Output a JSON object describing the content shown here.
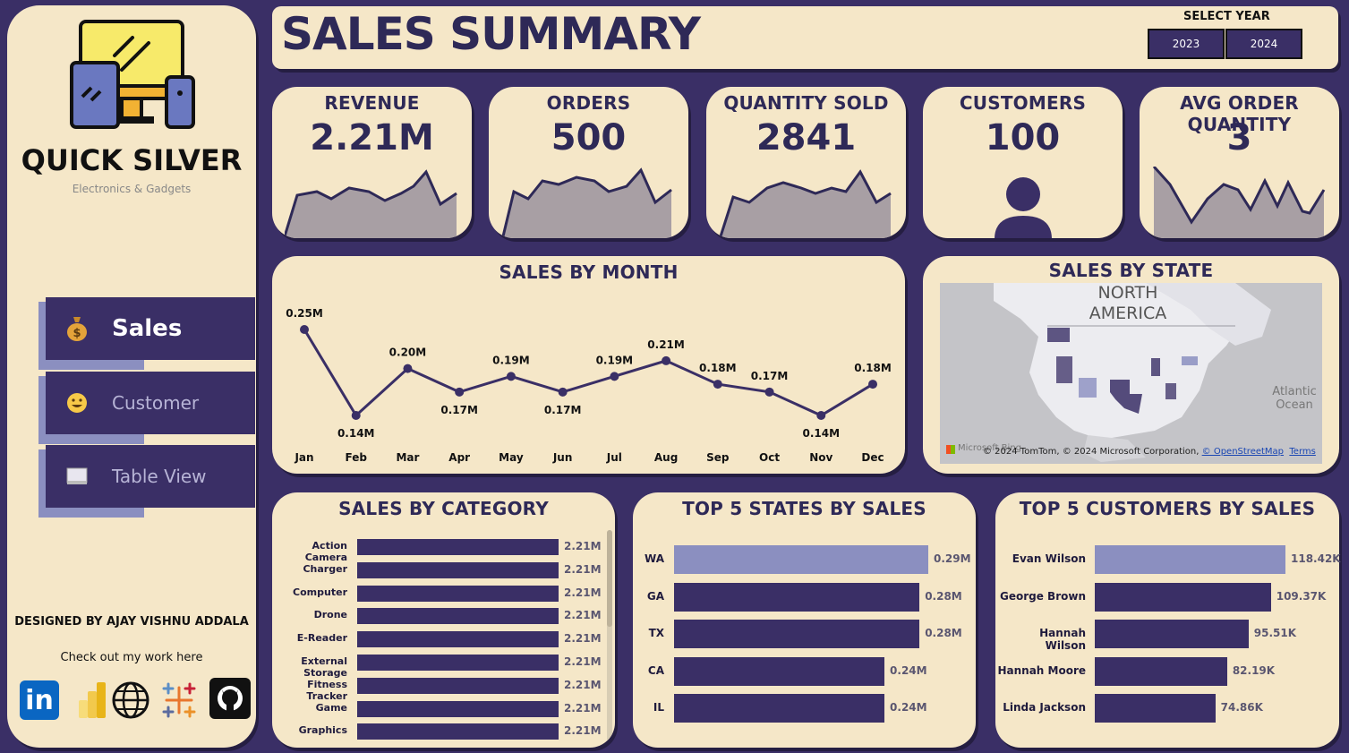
{
  "brand": {
    "name": "QUICK SILVER",
    "tagline": "Electronics & Gadgets"
  },
  "nav": [
    {
      "label": "Sales",
      "icon": "money-bag-icon"
    },
    {
      "label": "Customer",
      "icon": "smiley-icon"
    },
    {
      "label": "Table View",
      "icon": "table-icon"
    }
  ],
  "footer": {
    "designer": "DESIGNED BY AJAY VISHNU ADDALA",
    "cta": "Check out my work here",
    "linkedin_text": "in"
  },
  "header": {
    "title": "SALES SUMMARY",
    "year_label": "SELECT YEAR",
    "years": [
      "2023",
      "2024"
    ]
  },
  "kpis": [
    {
      "label": "REVENUE",
      "value": "2.21M"
    },
    {
      "label": "ORDERS",
      "value": "500"
    },
    {
      "label": "QUANTITY SOLD",
      "value": "2841"
    },
    {
      "label": "CUSTOMERS",
      "value": "100"
    },
    {
      "label": "AVG ORDER QUANTITY",
      "value": "3"
    }
  ],
  "month_chart": {
    "title": "SALES BY MONTH",
    "chart_data": {
      "type": "line",
      "categories": [
        "Jan",
        "Feb",
        "Mar",
        "Apr",
        "May",
        "Jun",
        "Jul",
        "Aug",
        "Sep",
        "Oct",
        "Nov",
        "Dec"
      ],
      "values": [
        0.25,
        0.14,
        0.2,
        0.17,
        0.19,
        0.17,
        0.19,
        0.21,
        0.18,
        0.17,
        0.14,
        0.18
      ],
      "labels": [
        "0.25M",
        "0.14M",
        "0.20M",
        "0.17M",
        "0.19M",
        "0.17M",
        "0.19M",
        "0.21M",
        "0.18M",
        "0.17M",
        "0.14M",
        "0.18M"
      ]
    }
  },
  "state_map": {
    "title": "SALES BY STATE",
    "region_label": "NORTH AMERICA",
    "ocean_label": "Atlantic Ocean",
    "attribution": "© 2024 TomTom, © 2024 Microsoft Corporation,",
    "osm_link": "© OpenStreetMap",
    "terms_link": "Terms",
    "ms_logo_text": "Microsoft Bing"
  },
  "category_chart": {
    "title": "SALES BY CATEGORY",
    "chart_data": {
      "type": "bar",
      "categories": [
        "Action Camera",
        "Charger",
        "Computer",
        "Drone",
        "E-Reader",
        "External Storage",
        "Fitness Tracker",
        "Game",
        "Graphics"
      ],
      "values": [
        2.21,
        2.21,
        2.21,
        2.21,
        2.21,
        2.21,
        2.21,
        2.21,
        2.21
      ],
      "labels": [
        "2.21M",
        "2.21M",
        "2.21M",
        "2.21M",
        "2.21M",
        "2.21M",
        "2.21M",
        "2.21M",
        "2.21M"
      ]
    }
  },
  "state_chart": {
    "title": "TOP 5 STATES BY SALES",
    "chart_data": {
      "type": "bar",
      "categories": [
        "WA",
        "GA",
        "TX",
        "CA",
        "IL"
      ],
      "values": [
        0.29,
        0.28,
        0.28,
        0.24,
        0.24
      ],
      "labels": [
        "0.29M",
        "0.28M",
        "0.28M",
        "0.24M",
        "0.24M"
      ]
    }
  },
  "customer_chart": {
    "title": "TOP 5 CUSTOMERS BY SALES",
    "chart_data": {
      "type": "bar",
      "categories": [
        "Evan Wilson",
        "George Brown",
        "Hannah Wilson",
        "Hannah Moore",
        "Linda Jackson"
      ],
      "values": [
        118.42,
        109.37,
        95.51,
        82.19,
        74.86
      ],
      "labels": [
        "118.42K",
        "109.37K",
        "95.51K",
        "82.19K",
        "74.86K"
      ]
    }
  },
  "colors": {
    "bg": "#3a2f66",
    "card": "#f5e7c8",
    "accent": "#2e2957",
    "highlight": "#8b8fc0",
    "spark": "#a89fa4"
  }
}
